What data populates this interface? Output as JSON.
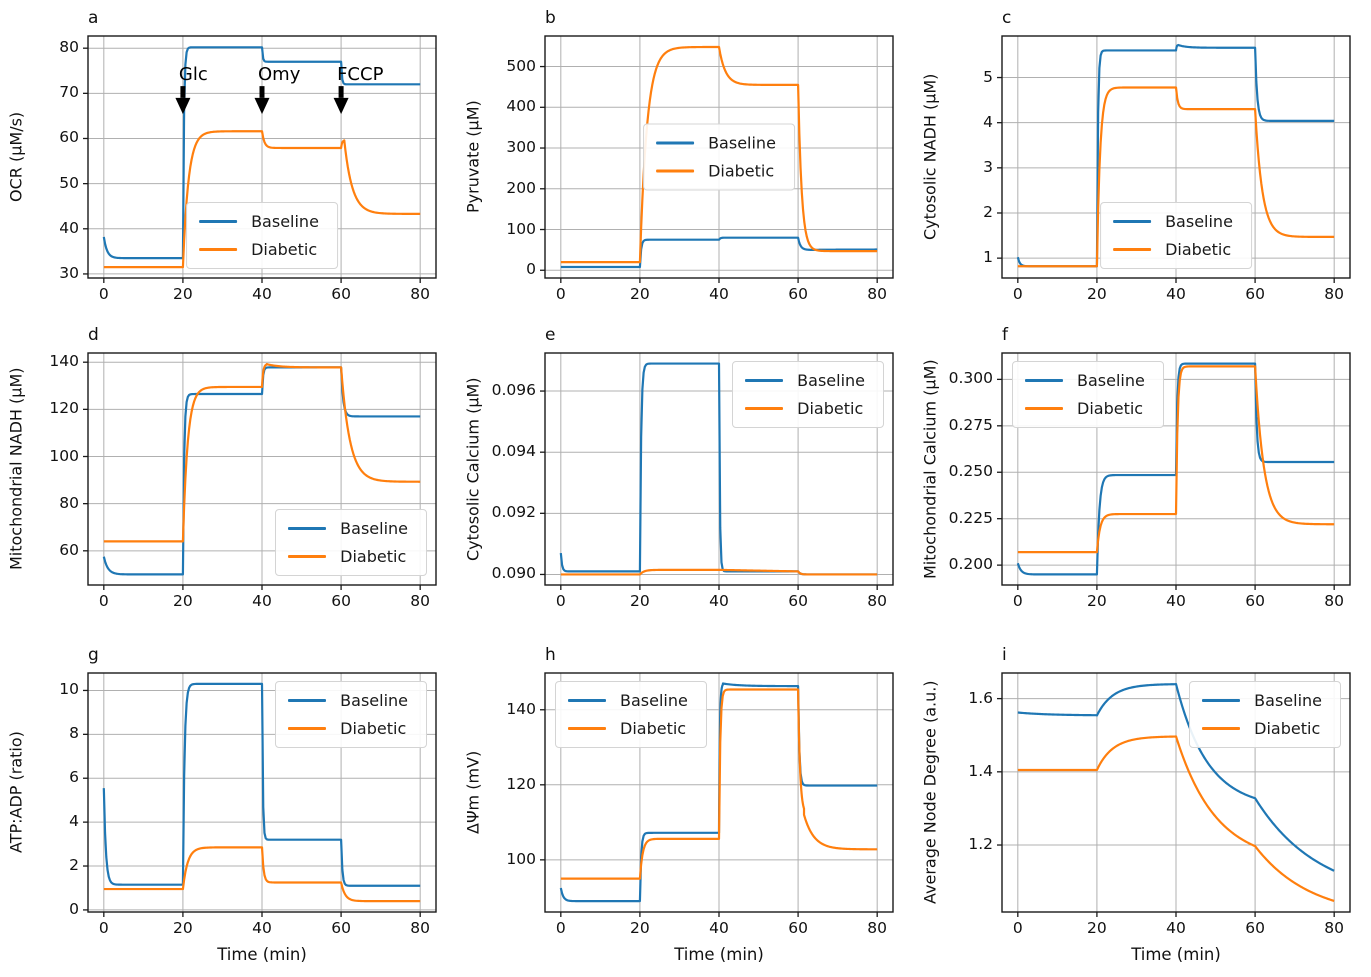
{
  "figure": {
    "xlabel": "Time (min)",
    "legend_labels": [
      "Baseline",
      "Diabetic"
    ],
    "colors": {
      "baseline": "#1f77b4",
      "diabetic": "#ff7f0e",
      "grid": "#b0b0b0",
      "text": "#111111",
      "annotation": "#000000"
    }
  },
  "chart_data": [
    {
      "id": "a",
      "type": "line",
      "ylabel": "OCR (μM/s)",
      "has_xlabel": false,
      "xlim": [
        -4,
        84
      ],
      "ylim": [
        29.1,
        82.7
      ],
      "xticks": [
        0,
        20,
        40,
        60,
        80
      ],
      "xticklabels": [
        "0",
        "20",
        "40",
        "60",
        "80"
      ],
      "yticks": [
        30,
        40,
        50,
        60,
        70,
        80
      ],
      "yticklabels": [
        "30",
        "40",
        "50",
        "60",
        "70",
        "80"
      ],
      "legend_pos": "lower-center",
      "series": [
        {
          "name": "Baseline",
          "segments": [
            [
              0,
              20,
              38.2,
              33.5,
              0.8
            ],
            [
              20,
              40,
              33.5,
              80.2,
              0.25
            ],
            [
              40,
              60,
              80.2,
              77.0,
              0.2
            ],
            [
              60,
              80,
              77.0,
              72.0,
              0.2
            ]
          ]
        },
        {
          "name": "Diabetic",
          "segments": [
            [
              0,
              20,
              31.5,
              31.5,
              0
            ],
            [
              20,
              40,
              31.5,
              61.6,
              1.4
            ],
            [
              40,
              60,
              61.6,
              57.9,
              0.6
            ],
            [
              60,
              60.8,
              57.9,
              59.6,
              0.25
            ],
            [
              60.8,
              80,
              59.6,
              43.3,
              2.0
            ]
          ]
        }
      ],
      "annotations": [
        {
          "text": "Glc",
          "x": 20,
          "text_y": 71.9,
          "tail_y": 71.6,
          "head_y": 69.0,
          "tip_y": 65.4
        },
        {
          "text": "Omy",
          "x": 40,
          "text_y": 71.9,
          "tail_y": 71.6,
          "head_y": 69.0,
          "tip_y": 65.4
        },
        {
          "text": "FCCP",
          "x": 60,
          "text_y": 71.9,
          "tail_y": 71.6,
          "head_y": 69.0,
          "tip_y": 65.4
        }
      ]
    },
    {
      "id": "b",
      "type": "line",
      "ylabel": "Pyruvate (μM)",
      "has_xlabel": false,
      "xlim": [
        -4,
        84
      ],
      "ylim": [
        -19,
        575
      ],
      "xticks": [
        0,
        20,
        40,
        60,
        80
      ],
      "xticklabels": [
        "0",
        "20",
        "40",
        "60",
        "80"
      ],
      "yticks": [
        0,
        100,
        200,
        300,
        400,
        500
      ],
      "yticklabels": [
        "0",
        "100",
        "200",
        "300",
        "400",
        "500"
      ],
      "legend_pos": "center",
      "series": [
        {
          "name": "Baseline",
          "segments": [
            [
              0,
              20,
              8,
              8,
              0
            ],
            [
              20,
              40,
              8,
              75,
              0.3
            ],
            [
              40,
              60,
              75,
              80,
              0.3
            ],
            [
              60,
              63,
              80,
              50,
              0.6
            ],
            [
              63,
              80,
              50,
              51,
              8
            ]
          ]
        },
        {
          "name": "Diabetic",
          "segments": [
            [
              0,
              20,
              20,
              20,
              0
            ],
            [
              20,
              40,
              20,
              548,
              1.8
            ],
            [
              40,
              60,
              548,
              455,
              1.6
            ],
            [
              60,
              80,
              455,
              47,
              0.9
            ]
          ]
        }
      ],
      "annotations": []
    },
    {
      "id": "c",
      "type": "line",
      "ylabel": "Cytosolic NADH (μM)",
      "has_xlabel": false,
      "xlim": [
        -4,
        84
      ],
      "ylim": [
        0.56,
        5.92
      ],
      "xticks": [
        0,
        20,
        40,
        60,
        80
      ],
      "xticklabels": [
        "0",
        "20",
        "40",
        "60",
        "80"
      ],
      "yticks": [
        1,
        2,
        3,
        4,
        5
      ],
      "yticklabels": [
        "1",
        "2",
        "3",
        "4",
        "5"
      ],
      "legend_pos": "lower-center",
      "series": [
        {
          "name": "Baseline",
          "segments": [
            [
              0,
              20,
              1.02,
              0.82,
              0.5
            ],
            [
              20,
              40,
              0.82,
              5.6,
              0.25
            ],
            [
              40,
              40.6,
              5.6,
              5.72,
              0.15
            ],
            [
              40.6,
              60,
              5.72,
              5.66,
              2
            ],
            [
              60,
              80,
              5.66,
              4.04,
              0.5
            ]
          ]
        },
        {
          "name": "Diabetic",
          "segments": [
            [
              0,
              20,
              0.82,
              0.82,
              0
            ],
            [
              20,
              40,
              0.82,
              4.78,
              0.8
            ],
            [
              40,
              60,
              4.78,
              4.3,
              0.45
            ],
            [
              60,
              80,
              4.3,
              1.47,
              1.8
            ]
          ]
        }
      ],
      "annotations": []
    },
    {
      "id": "d",
      "type": "line",
      "ylabel": "Mitochondrial NADH (μM)",
      "has_xlabel": false,
      "xlim": [
        -4,
        84
      ],
      "ylim": [
        45.5,
        143.9
      ],
      "xticks": [
        0,
        20,
        40,
        60,
        80
      ],
      "xticklabels": [
        "0",
        "20",
        "40",
        "60",
        "80"
      ],
      "yticks": [
        60,
        80,
        100,
        120,
        140
      ],
      "yticklabels": [
        "60",
        "80",
        "100",
        "120",
        "140"
      ],
      "legend_pos": "lower-right",
      "series": [
        {
          "name": "Baseline",
          "segments": [
            [
              0,
              20,
              57.5,
              50,
              1.0
            ],
            [
              20,
              40,
              50,
              126.5,
              0.3
            ],
            [
              40,
              60,
              126.5,
              137.8,
              0.25
            ],
            [
              60,
              80,
              137.8,
              117,
              0.5
            ]
          ]
        },
        {
          "name": "Diabetic",
          "segments": [
            [
              0,
              20,
              64,
              64,
              0
            ],
            [
              20,
              40,
              64,
              129.5,
              1.2
            ],
            [
              40,
              41.2,
              129.5,
              139.2,
              0.3
            ],
            [
              41.2,
              60,
              139.2,
              137.8,
              3
            ],
            [
              60,
              80,
              137.8,
              89.3,
              2.2
            ]
          ]
        }
      ],
      "annotations": []
    },
    {
      "id": "e",
      "type": "line",
      "ylabel": "Cytosolic Calcium (μM)",
      "has_xlabel": false,
      "xlim": [
        -4,
        84
      ],
      "ylim": [
        0.089655,
        0.097245
      ],
      "xticks": [
        0,
        20,
        40,
        60,
        80
      ],
      "xticklabels": [
        "0",
        "20",
        "40",
        "60",
        "80"
      ],
      "yticks": [
        0.09,
        0.092,
        0.094,
        0.096
      ],
      "yticklabels": [
        "0.090",
        "0.092",
        "0.094",
        "0.096"
      ],
      "legend_pos": "upper-right",
      "series": [
        {
          "name": "Baseline",
          "segments": [
            [
              0,
              20,
              0.0907,
              0.0901,
              0.3
            ],
            [
              20,
              40,
              0.0901,
              0.0969,
              0.3
            ],
            [
              40,
              60,
              0.0969,
              0.0901,
              0.2
            ],
            [
              60,
              80,
              0.0901,
              0.09,
              0.5
            ]
          ]
        },
        {
          "name": "Diabetic",
          "segments": [
            [
              0,
              20,
              0.09,
              0.09,
              0
            ],
            [
              20,
              40,
              0.09,
              0.09015,
              1.0
            ],
            [
              40,
              60,
              0.09015,
              0.0901,
              0
            ],
            [
              60,
              80,
              0.0901,
              0.09,
              0.5
            ]
          ]
        }
      ],
      "annotations": []
    },
    {
      "id": "f",
      "type": "line",
      "ylabel": "Mitochondrial Calcium (μM)",
      "has_xlabel": false,
      "xlim": [
        -4,
        84
      ],
      "ylim": [
        0.1893,
        0.3142
      ],
      "xticks": [
        0,
        20,
        40,
        60,
        80
      ],
      "xticklabels": [
        "0",
        "20",
        "40",
        "60",
        "80"
      ],
      "yticks": [
        0.2,
        0.225,
        0.25,
        0.275,
        0.3
      ],
      "yticklabels": [
        "0.200",
        "0.225",
        "0.250",
        "0.275",
        "0.300"
      ],
      "legend_pos": "upper-left",
      "series": [
        {
          "name": "Baseline",
          "segments": [
            [
              0,
              20,
              0.201,
              0.195,
              0.8
            ],
            [
              20,
              40,
              0.195,
              0.2485,
              0.6
            ],
            [
              40,
              60,
              0.2485,
              0.3085,
              0.3
            ],
            [
              60,
              80,
              0.3085,
              0.2555,
              0.4
            ]
          ]
        },
        {
          "name": "Diabetic",
          "segments": [
            [
              0,
              20,
              0.207,
              0.207,
              0
            ],
            [
              20,
              40,
              0.207,
              0.2275,
              0.8
            ],
            [
              40,
              60,
              0.2275,
              0.307,
              0.4
            ],
            [
              60,
              80,
              0.307,
              0.222,
              2.2
            ]
          ]
        }
      ],
      "annotations": []
    },
    {
      "id": "g",
      "type": "line",
      "ylabel": "ATP:ADP (ratio)",
      "has_xlabel": true,
      "xlim": [
        -4,
        84
      ],
      "ylim": [
        -0.095,
        10.795
      ],
      "xticks": [
        0,
        20,
        40,
        60,
        80
      ],
      "xticklabels": [
        "0",
        "20",
        "40",
        "60",
        "80"
      ],
      "yticks": [
        0,
        2,
        4,
        6,
        8,
        10
      ],
      "yticklabels": [
        "0",
        "2",
        "4",
        "6",
        "8",
        "10"
      ],
      "legend_pos": "upper-right",
      "series": [
        {
          "name": "Baseline",
          "segments": [
            [
              0,
              20,
              5.55,
              1.15,
              0.5
            ],
            [
              20,
              40,
              1.15,
              10.3,
              0.4
            ],
            [
              40,
              60,
              10.3,
              3.2,
              0.2
            ],
            [
              60,
              80,
              3.2,
              1.1,
              0.3
            ]
          ]
        },
        {
          "name": "Diabetic",
          "segments": [
            [
              0,
              20,
              0.95,
              0.95,
              0
            ],
            [
              20,
              40,
              0.95,
              2.85,
              1.2
            ],
            [
              40,
              60,
              2.85,
              1.25,
              0.4
            ],
            [
              60,
              80,
              1.25,
              0.4,
              1.0
            ]
          ]
        }
      ],
      "annotations": []
    },
    {
      "id": "h",
      "type": "line",
      "ylabel": "ΔΨm (mV)",
      "has_xlabel": true,
      "xlim": [
        -4,
        84
      ],
      "ylim": [
        86.1,
        149.8
      ],
      "xticks": [
        0,
        20,
        40,
        60,
        80
      ],
      "xticklabels": [
        "0",
        "20",
        "40",
        "60",
        "80"
      ],
      "yticks": [
        100,
        120,
        140
      ],
      "yticklabels": [
        "100",
        "120",
        "140"
      ],
      "legend_pos": "upper-left",
      "series": [
        {
          "name": "Baseline",
          "segments": [
            [
              0,
              20,
              92.5,
              89,
              0.6
            ],
            [
              20,
              40,
              89,
              107.2,
              0.3
            ],
            [
              40,
              41,
              107.2,
              147,
              0.2
            ],
            [
              41,
              60,
              147,
              146.3,
              4
            ],
            [
              60,
              80,
              146.3,
              119.8,
              0.3
            ]
          ]
        },
        {
          "name": "Diabetic",
          "segments": [
            [
              0,
              20,
              95,
              95,
              0
            ],
            [
              20,
              40,
              95,
              105.6,
              0.7
            ],
            [
              40,
              60,
              105.6,
              145.4,
              0.3
            ],
            [
              60,
              61.5,
              145.4,
              112,
              0.5
            ],
            [
              61.5,
              80,
              112,
              102.8,
              2.5
            ]
          ]
        }
      ],
      "annotations": []
    },
    {
      "id": "i",
      "type": "line",
      "ylabel": "Average Node Degree (a.u.)",
      "has_xlabel": true,
      "xlim": [
        -4,
        84
      ],
      "ylim": [
        1.017,
        1.67
      ],
      "xticks": [
        0,
        20,
        40,
        60,
        80
      ],
      "xticklabels": [
        "0",
        "20",
        "40",
        "60",
        "80"
      ],
      "yticks": [
        1.2,
        1.4,
        1.6
      ],
      "yticklabels": [
        "1.2",
        "1.4",
        "1.6"
      ],
      "legend_pos": "upper-right",
      "series": [
        {
          "name": "Baseline",
          "segments": [
            [
              0,
              20,
              1.562,
              1.554,
              8
            ],
            [
              20,
              40,
              1.554,
              1.64,
              4
            ],
            [
              40,
              60,
              1.64,
              1.3,
              8
            ],
            [
              60,
              80,
              1.328,
              1.05,
              16
            ]
          ]
        },
        {
          "name": "Diabetic",
          "segments": [
            [
              0,
              20,
              1.405,
              1.405,
              0
            ],
            [
              20,
              40,
              1.405,
              1.497,
              4
            ],
            [
              40,
              60,
              1.497,
              1.15,
              10
            ],
            [
              60,
              80,
              1.197,
              1.0,
              14
            ]
          ]
        }
      ],
      "annotations": []
    }
  ]
}
